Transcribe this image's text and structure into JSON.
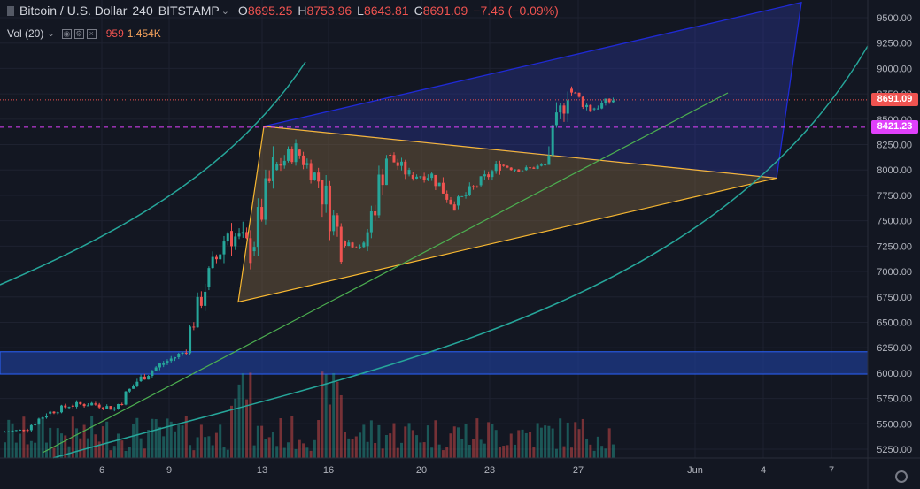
{
  "header": {
    "symbol": "Bitcoin / U.S. Dollar",
    "interval": "240",
    "exchange": "BITSTAMP",
    "open_label": "O",
    "open": "8695.25",
    "high_label": "H",
    "high": "8753.96",
    "low_label": "L",
    "low": "8643.81",
    "close_label": "C",
    "close": "8691.09",
    "change": "−7.46 (−0.09%)"
  },
  "volume_indicator": {
    "name": "Vol (20)",
    "value1": "959",
    "value2": "1.454K"
  },
  "price_axis": {
    "ticks": [
      "9500.00",
      "9250.00",
      "9000.00",
      "8750.00",
      "8500.00",
      "8250.00",
      "8000.00",
      "7750.00",
      "7500.00",
      "7250.00",
      "7000.00",
      "6750.00",
      "6500.00",
      "6250.00",
      "6000.00",
      "5750.00",
      "5500.00",
      "5250.00"
    ],
    "last_price_label": "8691.09",
    "horizontal_line_label": "8421.23"
  },
  "time_axis": {
    "ticks": [
      "6",
      "9",
      "13",
      "16",
      "20",
      "23",
      "27",
      "Jun",
      "4",
      "7"
    ]
  },
  "colors": {
    "background": "#131722",
    "up": "#26a69a",
    "down": "#ef5350",
    "last_price": "#ef5350",
    "magenta_line": "#e040fb",
    "triangle": "#f7b731",
    "blue_wedge": "#2962ff",
    "support_zone": "#1e3a8a",
    "arc": "#26a69a",
    "trendline": "#4caf50"
  },
  "icons": {
    "settings": "gear-icon"
  },
  "chart_data": {
    "type": "candlestick",
    "y_range": [
      5200,
      9650
    ],
    "ohlc": [
      {
        "x": "May 3",
        "o": 5420,
        "h": 5470,
        "l": 5380,
        "c": 5440
      },
      {
        "x": "May 4",
        "o": 5440,
        "h": 5620,
        "l": 5400,
        "c": 5600
      },
      {
        "x": "May 5",
        "o": 5600,
        "h": 5720,
        "l": 5550,
        "c": 5680
      },
      {
        "x": "May 6",
        "o": 5680,
        "h": 5780,
        "l": 5600,
        "c": 5700
      },
      {
        "x": "May 7",
        "o": 5700,
        "h": 5780,
        "l": 5620,
        "c": 5650
      },
      {
        "x": "May 8",
        "o": 5650,
        "h": 5950,
        "l": 5620,
        "c": 5920
      },
      {
        "x": "May 9",
        "o": 5920,
        "h": 6100,
        "l": 5850,
        "c": 6080
      },
      {
        "x": "May 10",
        "o": 6080,
        "h": 6250,
        "l": 6050,
        "c": 6200
      },
      {
        "x": "May 11",
        "o": 6200,
        "h": 6900,
        "l": 6180,
        "c": 6850
      },
      {
        "x": "May 12",
        "o": 6850,
        "h": 7600,
        "l": 6800,
        "c": 7400
      },
      {
        "x": "May 13",
        "o": 7400,
        "h": 7800,
        "l": 6900,
        "c": 7200
      },
      {
        "x": "May 14",
        "o": 7200,
        "h": 8300,
        "l": 7150,
        "c": 8000
      },
      {
        "x": "May 15",
        "o": 8000,
        "h": 8360,
        "l": 7800,
        "c": 8200
      },
      {
        "x": "May 16",
        "o": 8200,
        "h": 8280,
        "l": 7700,
        "c": 7900
      },
      {
        "x": "May 17",
        "o": 7900,
        "h": 7950,
        "l": 6750,
        "c": 7300
      },
      {
        "x": "May 18",
        "o": 7300,
        "h": 7350,
        "l": 7100,
        "c": 7250
      },
      {
        "x": "May 19",
        "o": 7250,
        "h": 8260,
        "l": 7200,
        "c": 8150
      },
      {
        "x": "May 20",
        "o": 8150,
        "h": 8200,
        "l": 7800,
        "c": 7950
      },
      {
        "x": "May 21",
        "o": 7950,
        "h": 8100,
        "l": 7800,
        "c": 7950
      },
      {
        "x": "May 22",
        "o": 7950,
        "h": 8050,
        "l": 7600,
        "c": 7650
      },
      {
        "x": "May 23",
        "o": 7650,
        "h": 7900,
        "l": 7550,
        "c": 7850
      },
      {
        "x": "May 24",
        "o": 7850,
        "h": 8150,
        "l": 7800,
        "c": 8050
      },
      {
        "x": "May 25",
        "o": 8050,
        "h": 8150,
        "l": 7950,
        "c": 8000
      },
      {
        "x": "May 26",
        "o": 8000,
        "h": 8100,
        "l": 7950,
        "c": 8050
      },
      {
        "x": "May 27",
        "o": 8050,
        "h": 8900,
        "l": 8050,
        "c": 8800
      },
      {
        "x": "May 28",
        "o": 8800,
        "h": 8850,
        "l": 8500,
        "c": 8600
      },
      {
        "x": "May 29",
        "o": 8600,
        "h": 8750,
        "l": 8500,
        "c": 8691
      }
    ],
    "horizontal_levels": [
      {
        "label": "8691.09",
        "value": 8691.09
      },
      {
        "label": "8421.23",
        "value": 8421.23
      }
    ]
  }
}
